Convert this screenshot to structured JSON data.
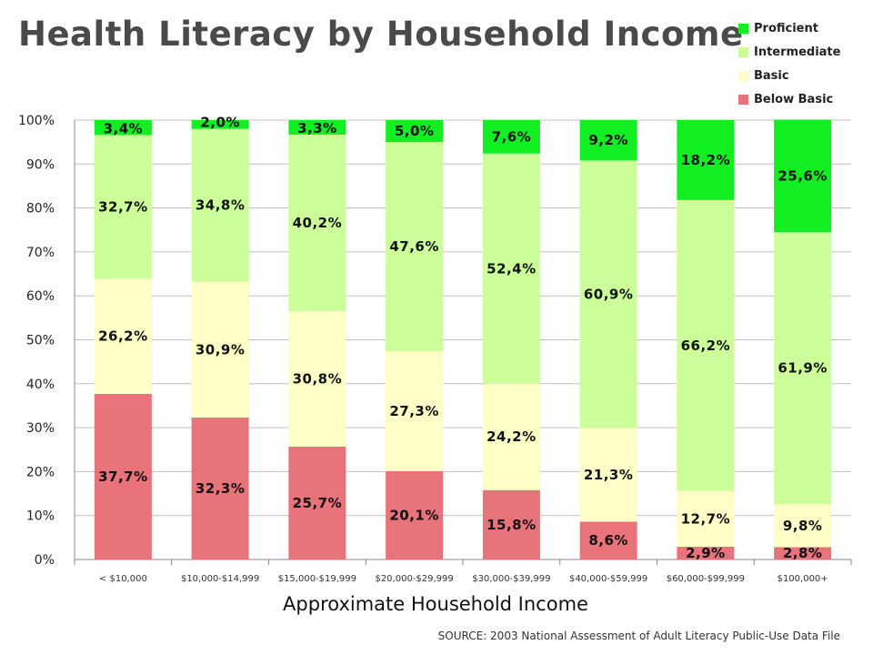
{
  "chart_data": {
    "type": "bar",
    "stacked": true,
    "title": "Health Literacy by Household Income",
    "xlabel": "Approximate Household Income",
    "ylabel": "",
    "ylim": [
      0,
      100
    ],
    "y_ticks": [
      "0%",
      "10%",
      "20%",
      "30%",
      "40%",
      "50%",
      "60%",
      "70%",
      "80%",
      "90%",
      "100%"
    ],
    "grid": true,
    "legend_position": "top-right",
    "categories": [
      "< $10,000",
      "$10,000-$14,999",
      "$15,000-$19,999",
      "$20,000-$29,999",
      "$30,000-$39,999",
      "$40,000-$59,999",
      "$60,000-$99,999",
      "$100,000+"
    ],
    "series": [
      {
        "name": "Below Basic",
        "color": "#e8737a",
        "values": [
          37.7,
          32.3,
          25.7,
          20.1,
          15.8,
          8.6,
          2.9,
          2.8
        ],
        "labels": [
          "37,7%",
          "32,3%",
          "25,7%",
          "20,1%",
          "15,8%",
          "8,6%",
          "2,9%",
          "2,8%"
        ]
      },
      {
        "name": "Basic",
        "color": "#ffffc8",
        "values": [
          26.2,
          30.9,
          30.8,
          27.3,
          24.2,
          21.3,
          12.7,
          9.8
        ],
        "labels": [
          "26,2%",
          "30,9%",
          "30,8%",
          "27,3%",
          "24,2%",
          "21,3%",
          "12,7%",
          "9,8%"
        ]
      },
      {
        "name": "Intermediate",
        "color": "#ccff99",
        "values": [
          32.7,
          34.8,
          40.2,
          47.6,
          52.4,
          60.9,
          66.2,
          61.9
        ],
        "labels": [
          "32,7%",
          "34,8%",
          "40,2%",
          "47,6%",
          "52,4%",
          "60,9%",
          "66,2%",
          "61,9%"
        ]
      },
      {
        "name": "Proficient",
        "color": "#11ee22",
        "values": [
          3.4,
          2.0,
          3.3,
          5.0,
          7.6,
          9.2,
          18.2,
          25.6
        ],
        "labels": [
          "3,4%",
          "2,0%",
          "3,3%",
          "5,0%",
          "7,6%",
          "9,2%",
          "18,2%",
          "25,6%"
        ]
      }
    ],
    "legend_order": [
      "Proficient",
      "Intermediate",
      "Basic",
      "Below Basic"
    ],
    "source": "SOURCE: 2003 National Assessment of Adult Literacy Public-Use Data File"
  }
}
